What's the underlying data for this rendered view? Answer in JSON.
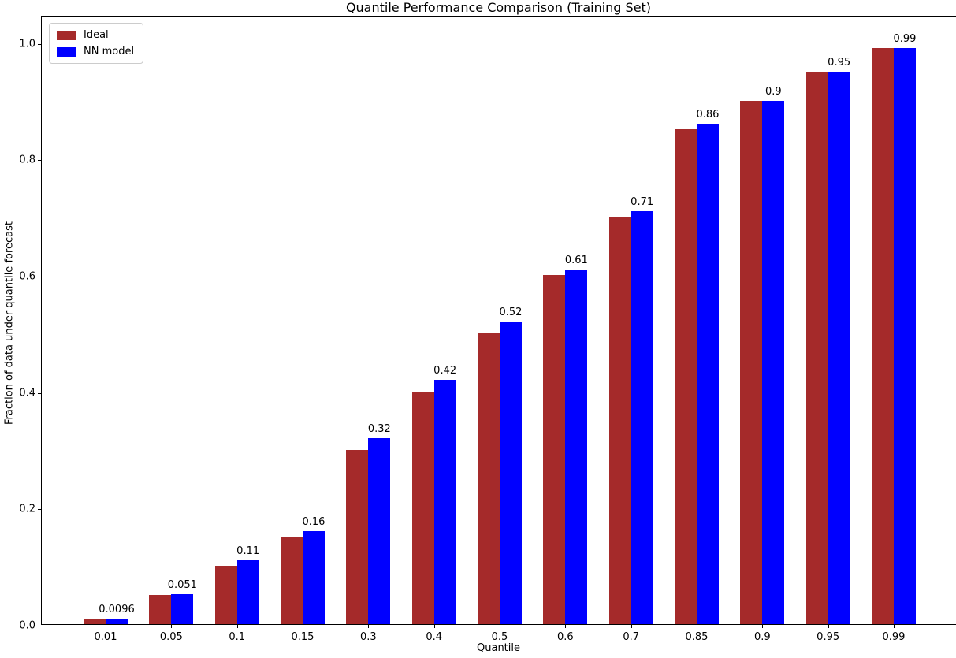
{
  "chart_data": {
    "type": "bar",
    "title": "Quantile Performance Comparison (Training Set)",
    "xlabel": "Quantile",
    "ylabel": "Fraction of data under quantile forecast",
    "categories": [
      "0.01",
      "0.05",
      "0.1",
      "0.15",
      "0.3",
      "0.4",
      "0.5",
      "0.6",
      "0.7",
      "0.85",
      "0.9",
      "0.95",
      "0.99"
    ],
    "series": [
      {
        "name": "Ideal",
        "color": "#a52a2a",
        "values": [
          0.01,
          0.05,
          0.1,
          0.15,
          0.3,
          0.4,
          0.5,
          0.6,
          0.7,
          0.85,
          0.9,
          0.95,
          0.99
        ]
      },
      {
        "name": "NN model",
        "color": "#0000ff",
        "values": [
          0.0096,
          0.051,
          0.11,
          0.16,
          0.32,
          0.42,
          0.52,
          0.61,
          0.71,
          0.86,
          0.9,
          0.95,
          0.99
        ],
        "value_labels": [
          "0.0096",
          "0.051",
          "0.11",
          "0.16",
          "0.32",
          "0.42",
          "0.52",
          "0.61",
          "0.71",
          "0.86",
          "0.9",
          "0.95",
          "0.99"
        ]
      }
    ],
    "yticks": [
      "0.0",
      "0.2",
      "0.4",
      "0.6",
      "0.8",
      "1.0"
    ],
    "ylim": [
      0,
      1.047
    ],
    "grid": false,
    "legend_position": "upper left",
    "background": "#ffffff",
    "axis_color": "#000000"
  }
}
